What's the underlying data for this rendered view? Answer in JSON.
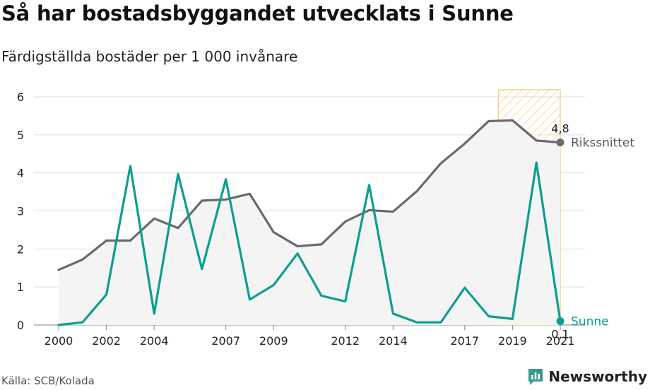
{
  "header": {
    "title": "Så har bostadsbyggandet utvecklats i Sunne",
    "subtitle": "Färdigställda bostäder per 1 000 invånare"
  },
  "footer": {
    "source": "Källa: SCB/Kolada",
    "brand": "Newsworthy"
  },
  "chart_data": {
    "type": "line",
    "title": "Så har bostadsbyggandet utvecklats i Sunne",
    "subtitle": "Färdigställda bostäder per 1 000 invånare",
    "xlabel": "",
    "ylabel": "",
    "ylim": [
      0,
      6
    ],
    "xlim": [
      2000,
      2021
    ],
    "x": [
      2000,
      2001,
      2002,
      2003,
      2004,
      2005,
      2006,
      2007,
      2008,
      2009,
      2010,
      2011,
      2012,
      2013,
      2014,
      2015,
      2016,
      2017,
      2018,
      2019,
      2020,
      2021
    ],
    "x_tick_labels": [
      "2000",
      "2002",
      "2004",
      "2007",
      "2009",
      "2012",
      "2014",
      "2017",
      "2019",
      "2021"
    ],
    "y_tick_labels": [
      "0",
      "1",
      "2",
      "3",
      "4",
      "5",
      "6"
    ],
    "grid": true,
    "highlight_range": [
      2019,
      2021
    ],
    "series": [
      {
        "name": "Rikssnittet",
        "color": "#6b6970",
        "values": [
          1.45,
          1.72,
          2.22,
          2.22,
          2.8,
          2.55,
          3.27,
          3.3,
          3.45,
          2.44,
          2.07,
          2.12,
          2.72,
          3.02,
          2.98,
          3.52,
          4.25,
          4.77,
          5.36,
          5.38,
          4.85,
          4.8
        ],
        "end_label": "4,8"
      },
      {
        "name": "Sunne",
        "color": "#0d9e90",
        "values": [
          0.0,
          0.07,
          0.8,
          4.18,
          0.3,
          3.97,
          1.47,
          3.83,
          0.67,
          1.05,
          1.88,
          0.77,
          0.62,
          3.68,
          0.3,
          0.07,
          0.07,
          0.98,
          0.23,
          0.16,
          4.27,
          0.1
        ],
        "end_label": "0,1"
      }
    ]
  }
}
